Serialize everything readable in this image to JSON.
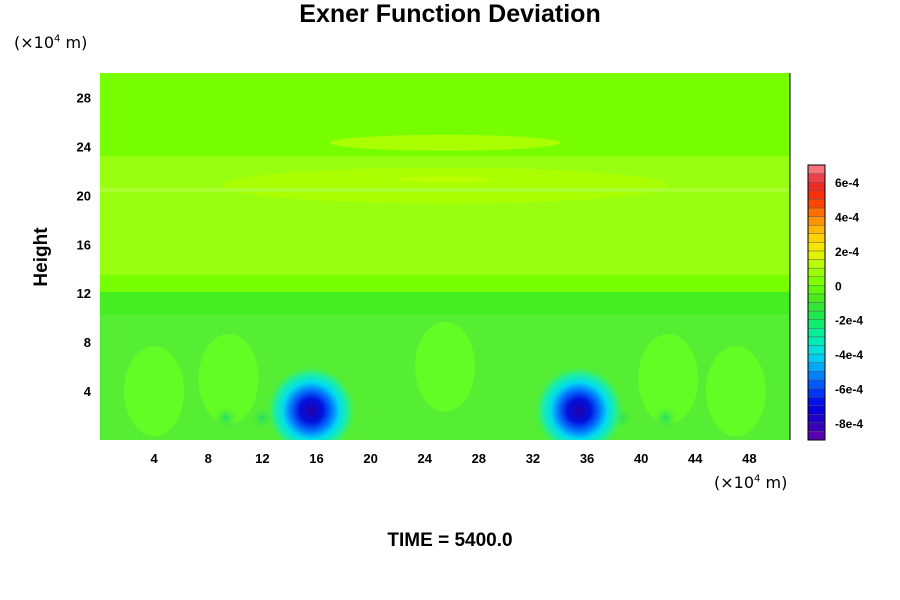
{
  "chart_data": {
    "type": "heatmap",
    "title": "Exner Function Deviation",
    "ylabel": "Height",
    "xlabel": "",
    "x_unit_label": "(×10",
    "x_unit_exp": "4",
    "x_unit_suffix": " m)",
    "y_unit_label": "(×10",
    "y_unit_exp": "4",
    "y_unit_suffix": " m)",
    "xlim": [
      0,
      51
    ],
    "ylim": [
      0,
      30
    ],
    "x_ticks": [
      "4",
      "8",
      "12",
      "16",
      "20",
      "24",
      "28",
      "32",
      "36",
      "40",
      "44",
      "48"
    ],
    "x_tick_values": [
      4,
      8,
      12,
      16,
      20,
      24,
      28,
      32,
      36,
      40,
      44,
      48
    ],
    "y_ticks": [
      "4",
      "8",
      "12",
      "16",
      "20",
      "24",
      "28"
    ],
    "y_tick_values": [
      4,
      8,
      12,
      16,
      20,
      24,
      28
    ],
    "colorbar": {
      "min": -0.0009,
      "max": 0.0007,
      "tick_labels": [
        "6e-4",
        "4e-4",
        "2e-4",
        "0",
        "-2e-4",
        "-4e-4",
        "-6e-4",
        "-8e-4"
      ],
      "tick_values": [
        0.0006,
        0.0004,
        0.0002,
        0,
        -0.0002,
        -0.0004,
        -0.0006,
        -0.0008
      ]
    },
    "features": [
      {
        "kind": "minimum",
        "x": 15.6,
        "y": 2.4,
        "value": -0.0009
      },
      {
        "kind": "minimum",
        "x": 35.4,
        "y": 2.4,
        "value": -0.0009
      }
    ]
  },
  "footer": {
    "time_label": "TIME = 5400.0"
  }
}
